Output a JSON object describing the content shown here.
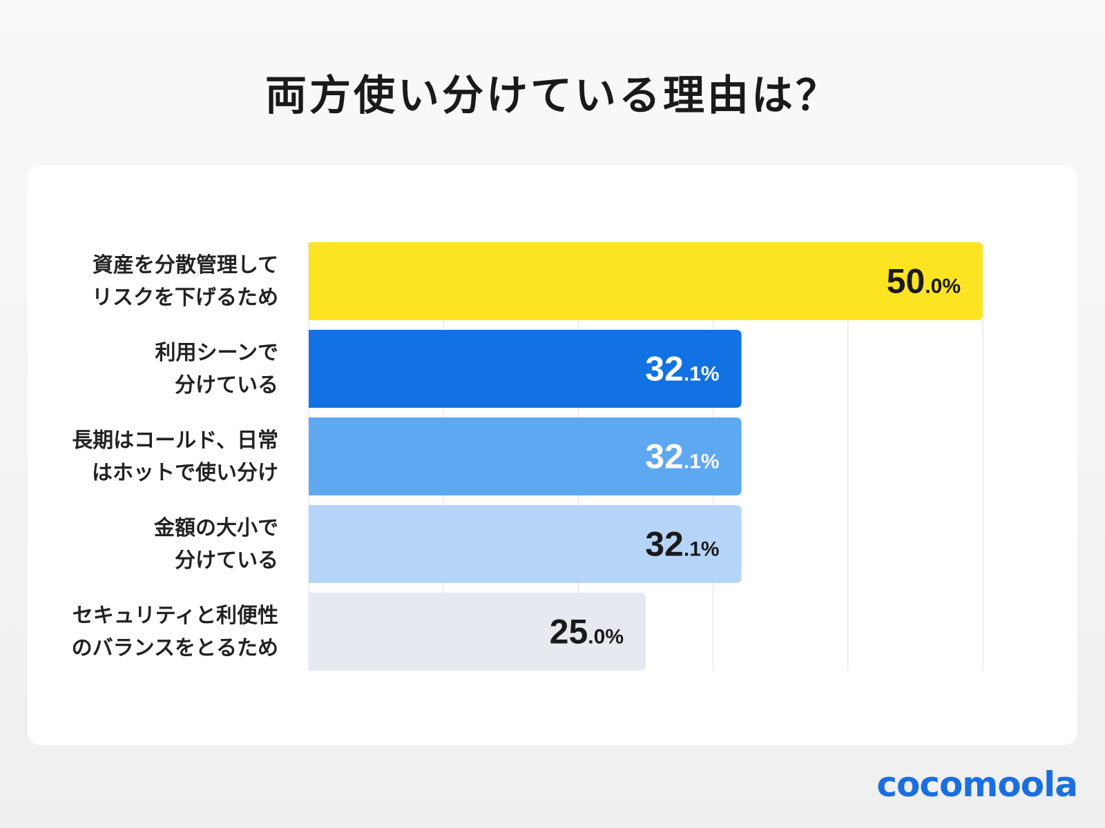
{
  "title": "両方使い分けている理由は？",
  "logo": "cocomoola",
  "chart_data": {
    "type": "bar",
    "orientation": "horizontal",
    "title": "両方使い分けている理由は？",
    "categories": [
      [
        "資産を分散管理して",
        "リスクを下げるため"
      ],
      [
        "利用シーンで",
        "分けている"
      ],
      [
        "長期はコールド、日常",
        "はホットで使い分け"
      ],
      [
        "金額の大小で",
        "分けている"
      ],
      [
        "セキュリティと利便性",
        "のバランスをとるため"
      ]
    ],
    "values": [
      50.0,
      32.1,
      32.1,
      32.1,
      25.0
    ],
    "value_labels": [
      {
        "int": "50",
        "dec": ".0%"
      },
      {
        "int": "32",
        "dec": ".1%"
      },
      {
        "int": "32",
        "dec": ".1%"
      },
      {
        "int": "32",
        "dec": ".1%"
      },
      {
        "int": "25",
        "dec": ".0%"
      }
    ],
    "bar_colors": [
      "#fde422",
      "#1271e3",
      "#5ea8f2",
      "#b5d5f8",
      "#e6e9ef"
    ],
    "label_colors": [
      "#1a1a1a",
      "#ffffff",
      "#ffffff",
      "#1a1a1a",
      "#1a1a1a"
    ],
    "xlim": [
      0,
      50
    ],
    "grid": true,
    "grid_step": 10,
    "tick_labels_shown": false,
    "xlabel": "",
    "ylabel": ""
  }
}
